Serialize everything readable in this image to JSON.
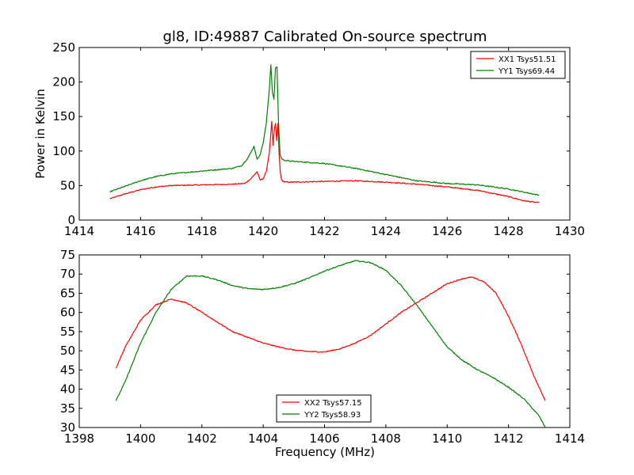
{
  "chart_data": [
    {
      "type": "line",
      "title": "gl8, ID:49887 Calibrated On-source spectrum",
      "xlabel": "",
      "ylabel": "Power in Kelvin",
      "xlim": [
        1414,
        1430
      ],
      "ylim": [
        0,
        250
      ],
      "xticks": [
        1414,
        1416,
        1418,
        1420,
        1422,
        1424,
        1426,
        1428,
        1430
      ],
      "yticks": [
        0,
        50,
        100,
        150,
        200,
        250
      ],
      "legend_position": "top-right",
      "series": [
        {
          "name": "XX1 Tsys51.51",
          "color": "#ff0000",
          "x": [
            1415,
            1415.5,
            1416,
            1416.5,
            1417,
            1418,
            1419,
            1419.4,
            1419.6,
            1419.8,
            1419.9,
            1420.0,
            1420.1,
            1420.2,
            1420.28,
            1420.32,
            1420.36,
            1420.4,
            1420.44,
            1420.48,
            1420.52,
            1420.56,
            1420.6,
            1420.7,
            1421,
            1422,
            1423,
            1424,
            1425,
            1426,
            1427,
            1428,
            1428.5,
            1429
          ],
          "y": [
            31,
            38,
            44,
            48,
            50,
            51,
            52,
            53,
            60,
            70,
            58,
            60,
            70,
            98,
            143,
            108,
            130,
            140,
            115,
            140,
            95,
            68,
            58,
            55,
            55,
            56,
            57,
            55,
            52,
            48,
            43,
            34,
            28,
            25
          ]
        },
        {
          "name": "YY1 Tsys69.44",
          "color": "#008000",
          "x": [
            1415,
            1415.5,
            1416,
            1416.5,
            1417,
            1418,
            1419,
            1419.3,
            1419.5,
            1419.6,
            1419.7,
            1419.8,
            1419.9,
            1420.0,
            1420.1,
            1420.2,
            1420.25,
            1420.3,
            1420.35,
            1420.4,
            1420.45,
            1420.5,
            1420.55,
            1420.62,
            1420.75,
            1421,
            1422,
            1423,
            1424,
            1425,
            1426,
            1427,
            1428,
            1429
          ],
          "y": [
            41,
            49,
            57,
            63,
            67,
            71,
            75,
            79,
            90,
            98,
            107,
            88,
            95,
            112,
            140,
            190,
            225,
            185,
            175,
            220,
            222,
            140,
            95,
            88,
            86,
            85,
            82,
            75,
            66,
            57,
            53,
            51,
            45,
            36
          ]
        }
      ]
    },
    {
      "type": "line",
      "title": "",
      "xlabel": "Frequency (MHz)",
      "ylabel": "",
      "xlim": [
        1398,
        1414
      ],
      "ylim": [
        30,
        75
      ],
      "xticks": [
        1398,
        1400,
        1402,
        1404,
        1406,
        1408,
        1410,
        1412,
        1414
      ],
      "yticks": [
        30,
        35,
        40,
        45,
        50,
        55,
        60,
        65,
        70,
        75
      ],
      "legend_position": "bottom-center",
      "series": [
        {
          "name": "XX2 Tsys57.15",
          "color": "#ff0000",
          "x": [
            1399.2,
            1399.5,
            1400,
            1400.5,
            1401,
            1401.5,
            1402,
            1402.5,
            1403,
            1403.5,
            1404,
            1404.5,
            1405,
            1405.5,
            1406,
            1406.5,
            1407,
            1407.5,
            1408,
            1408.5,
            1409,
            1409.5,
            1410,
            1410.5,
            1410.8,
            1411.2,
            1411.6,
            1412,
            1412.4,
            1412.8,
            1413.2
          ],
          "y": [
            45.5,
            51,
            58,
            62,
            63.5,
            62.5,
            60,
            57.5,
            55,
            53.5,
            52,
            51,
            50.2,
            49.8,
            49.7,
            50.5,
            52,
            54,
            57,
            60,
            62.5,
            65,
            67.5,
            68.8,
            69.2,
            68,
            65,
            59,
            52,
            44,
            37
          ]
        },
        {
          "name": "YY2 Tsys58.93",
          "color": "#008000",
          "x": [
            1399.2,
            1399.5,
            1400,
            1400.5,
            1401,
            1401.5,
            1402,
            1402.5,
            1403,
            1403.5,
            1404,
            1404.5,
            1405,
            1405.5,
            1406,
            1406.5,
            1407,
            1407.5,
            1408,
            1408.5,
            1409,
            1409.5,
            1410,
            1410.5,
            1411,
            1411.5,
            1412,
            1412.5,
            1413,
            1413.2
          ],
          "y": [
            37,
            42,
            52,
            60,
            66,
            69.5,
            69.5,
            68.5,
            67,
            66.2,
            66,
            66.5,
            67.5,
            69,
            70.8,
            72.2,
            73.5,
            73,
            71,
            67,
            62,
            56.5,
            51,
            47.5,
            45,
            43,
            40.5,
            37.5,
            33,
            30
          ]
        }
      ]
    }
  ]
}
